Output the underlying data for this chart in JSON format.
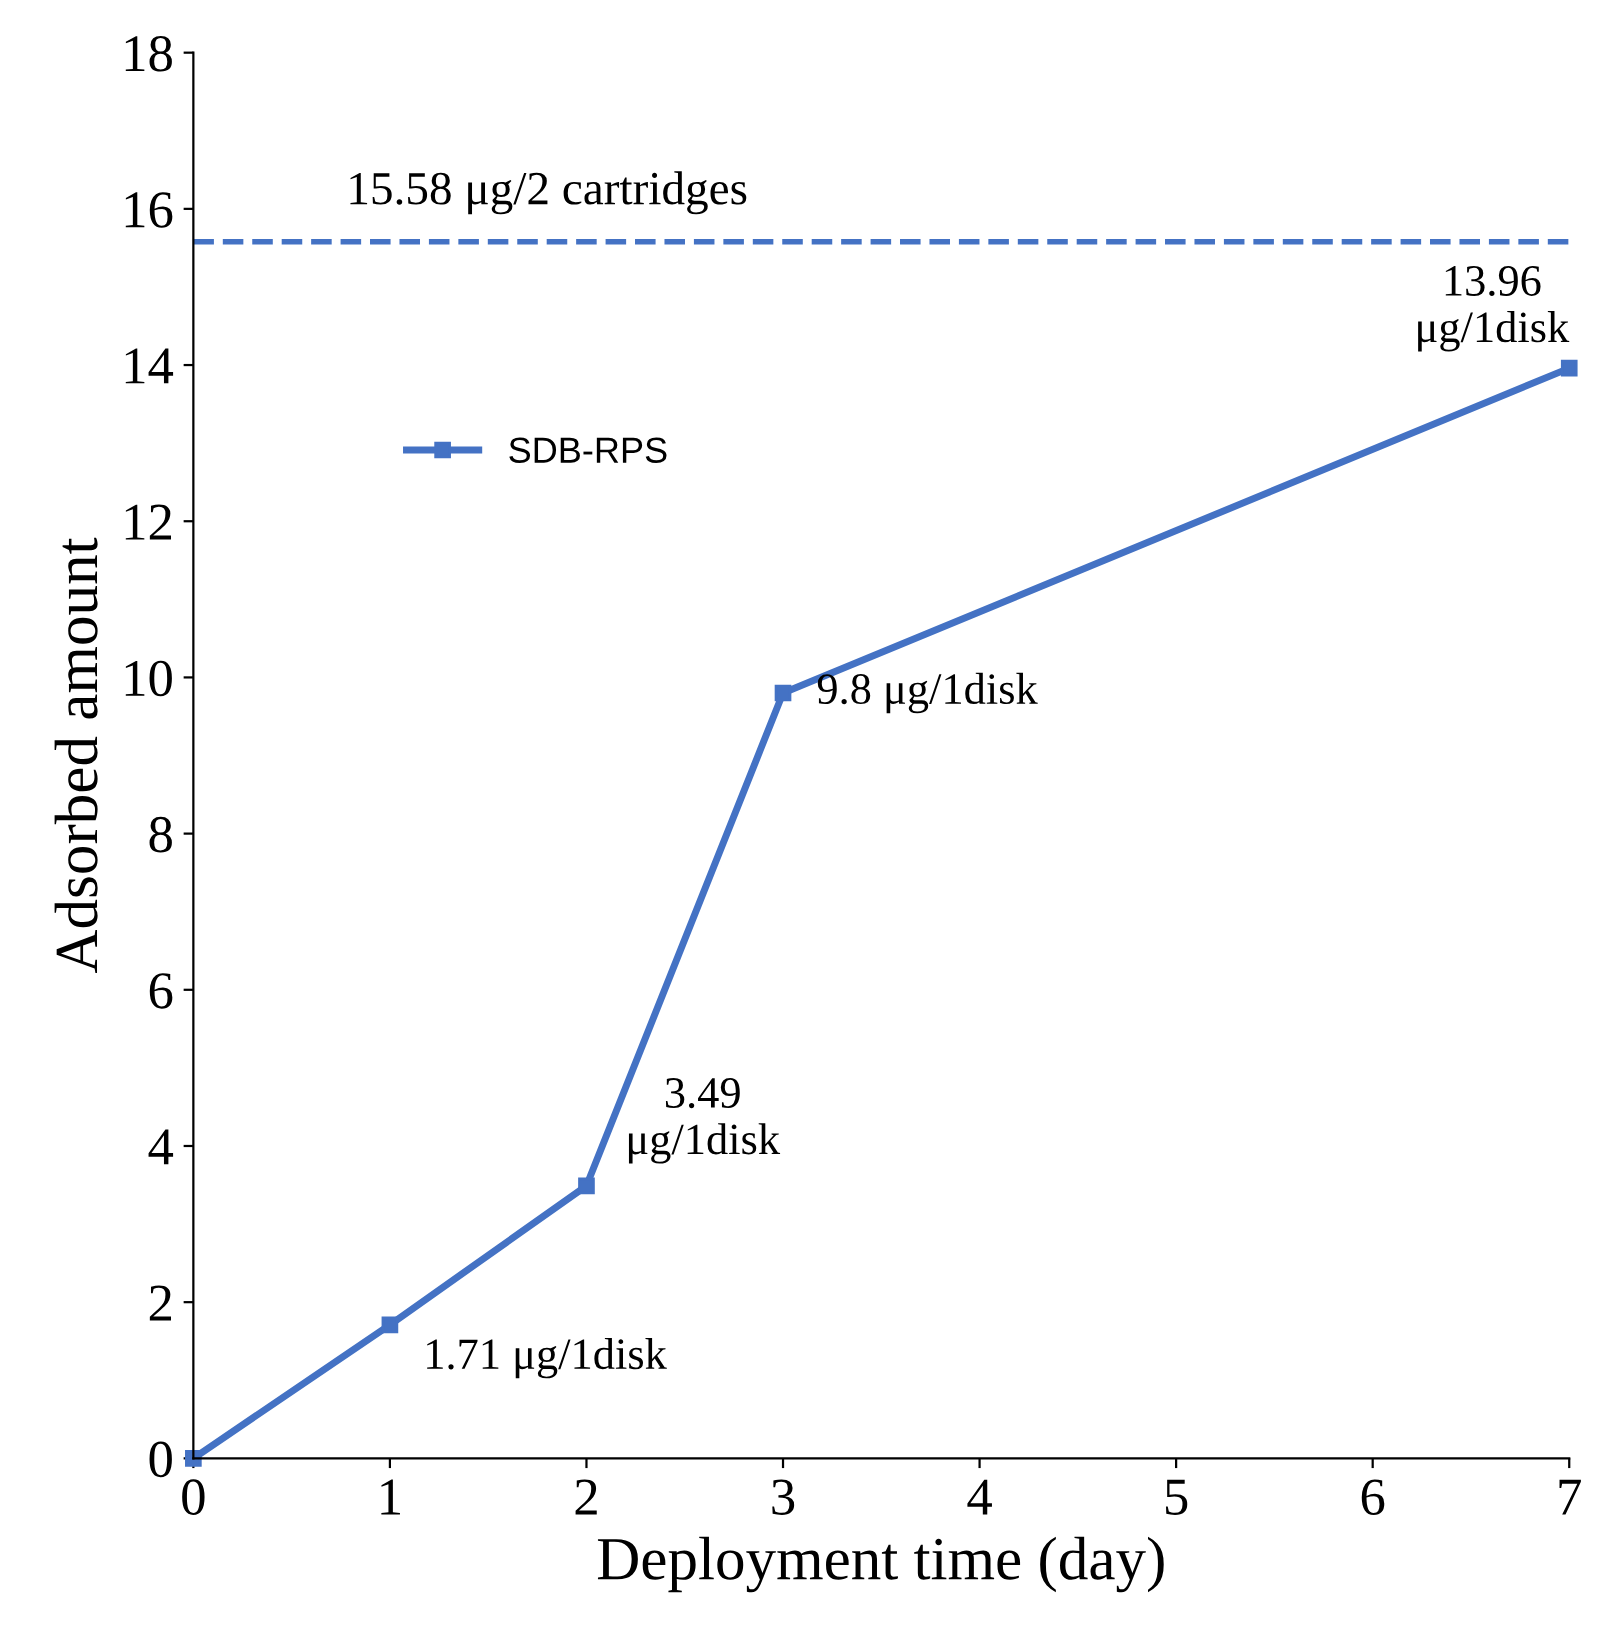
{
  "chart_data": {
    "type": "line",
    "xlabel": "Deployment time (day)",
    "ylabel": "Adsorbed amount",
    "series": [
      {
        "name": "SDB-RPS",
        "color": "#4472c4",
        "x": [
          0,
          1,
          2,
          3,
          7
        ],
        "values": [
          0,
          1.71,
          3.49,
          9.8,
          13.96
        ]
      }
    ],
    "ref_lines": [
      {
        "axis": "y",
        "value": 15.58,
        "label": "15.58 μg/2 cartridges",
        "color": "#4472c4",
        "line_style": "dashed"
      }
    ],
    "annotations": [
      {
        "text": "1.71 μg/1disk",
        "x": 1,
        "y": 1.71
      },
      {
        "text": "3.49\nμg/1disk",
        "x": 2,
        "y": 3.49
      },
      {
        "text": "9.8 μg/1disk",
        "x": 3,
        "y": 9.8
      },
      {
        "text": "13.96\nμg/1disk",
        "x": 7,
        "y": 13.96
      }
    ],
    "xlim": [
      0,
      7
    ],
    "ylim": [
      0,
      18
    ],
    "xticks": [
      0,
      1,
      2,
      3,
      4,
      5,
      6,
      7
    ],
    "yticks": [
      0,
      2,
      4,
      6,
      8,
      10,
      12,
      14,
      16,
      18
    ],
    "marker": "square",
    "line_style": "solid",
    "legend": "top left",
    "grid": false
  }
}
